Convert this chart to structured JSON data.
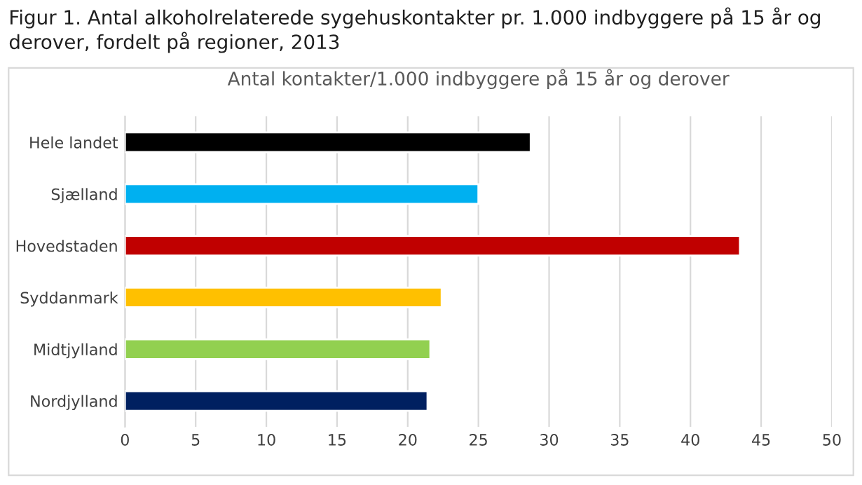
{
  "chart_data": {
    "type": "bar",
    "orientation": "horizontal",
    "title": "Figur 1. Antal alkoholrelaterede sygehuskontakter pr. 1.000 indbyggere på 15 år og derover, fordelt på regioner, 2013",
    "subtitle": "Antal kontakter/1.000 indbyggere på 15 år og derover",
    "categories": [
      "Hele landet",
      "Sjælland",
      "Hovedstaden",
      "Syddanmark",
      "Midtjylland",
      "Nordjylland"
    ],
    "values": [
      28.7,
      25.0,
      43.5,
      22.4,
      21.6,
      21.4
    ],
    "colors": [
      "#000000",
      "#00b0f0",
      "#c00000",
      "#ffc000",
      "#92d050",
      "#002060"
    ],
    "xlim": [
      0,
      50
    ],
    "xticks": [
      0,
      5,
      10,
      15,
      20,
      25,
      30,
      35,
      40,
      45,
      50
    ],
    "grid": "x",
    "legend": false
  }
}
